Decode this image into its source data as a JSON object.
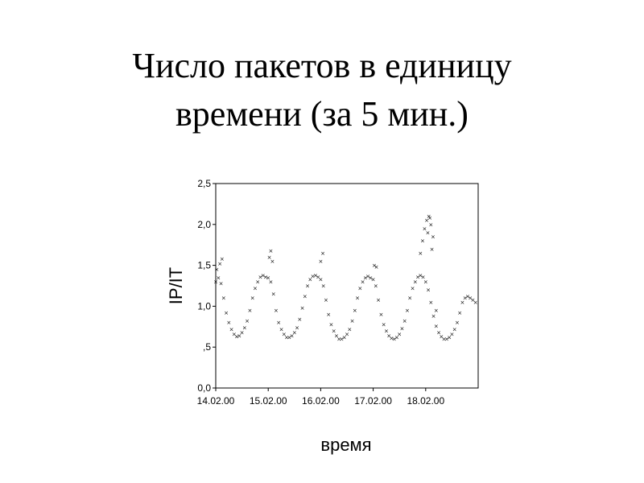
{
  "slide": {
    "title_line1": "Число пакетов в единицу",
    "title_line2": "времени (за 5 мин.)"
  },
  "chart_data": {
    "type": "scatter",
    "title": "",
    "xlabel": "время",
    "ylabel": "IP/IT",
    "marker": "x",
    "ylim": [
      0,
      2.5
    ],
    "xlim": [
      0,
      5
    ],
    "y_ticks": [
      0,
      0.5,
      1.0,
      1.5,
      2.0,
      2.5
    ],
    "y_tick_labels": [
      "0,0",
      ",5",
      "1,0",
      "1,5",
      "2,0",
      "2,5"
    ],
    "x_ticks": [
      0,
      1,
      2,
      3,
      4
    ],
    "x_tick_labels": [
      "14.02.00",
      "15.02.00",
      "16.02.00",
      "17.02.00",
      "18.02.00"
    ],
    "series": [
      {
        "x": [
          0.0,
          0.05,
          0.1,
          0.15,
          0.2,
          0.25,
          0.3,
          0.35,
          0.4,
          0.45,
          0.5,
          0.55,
          0.6,
          0.65,
          0.7,
          0.75,
          0.8,
          0.85,
          0.9,
          0.95,
          1.0,
          1.05,
          1.1,
          1.15,
          1.2,
          1.25,
          1.3,
          1.35,
          1.4,
          1.45,
          1.5,
          1.55,
          1.6,
          1.65,
          1.7,
          1.75,
          1.8,
          1.85,
          1.9,
          1.95,
          2.0,
          2.05,
          2.1,
          2.15,
          2.2,
          2.25,
          2.3,
          2.35,
          2.4,
          2.45,
          2.5,
          2.55,
          2.6,
          2.65,
          2.7,
          2.75,
          2.8,
          2.85,
          2.9,
          2.95,
          3.0,
          3.05,
          3.1,
          3.15,
          3.2,
          3.25,
          3.3,
          3.35,
          3.4,
          3.45,
          3.5,
          3.55,
          3.6,
          3.65,
          3.7,
          3.75,
          3.8,
          3.85,
          3.9,
          3.95,
          4.0,
          4.05,
          4.1,
          4.15,
          4.2,
          4.25,
          4.3,
          4.35,
          4.4,
          4.45,
          4.5,
          4.55,
          4.6,
          4.65,
          4.7,
          4.75,
          4.8,
          4.85,
          4.9,
          4.95,
          0.02,
          0.08,
          0.12,
          1.02,
          1.05,
          1.08,
          2.0,
          2.04,
          3.02,
          3.06,
          3.9,
          3.94,
          3.98,
          4.02,
          4.06,
          4.1,
          4.14,
          4.08,
          4.04,
          4.12,
          4.2
        ],
        "y": [
          1.3,
          1.35,
          1.28,
          1.1,
          0.92,
          0.8,
          0.72,
          0.66,
          0.63,
          0.64,
          0.68,
          0.74,
          0.82,
          0.95,
          1.1,
          1.22,
          1.3,
          1.36,
          1.38,
          1.36,
          1.35,
          1.3,
          1.15,
          0.95,
          0.8,
          0.72,
          0.66,
          0.62,
          0.62,
          0.64,
          0.68,
          0.74,
          0.84,
          0.98,
          1.12,
          1.25,
          1.33,
          1.37,
          1.38,
          1.36,
          1.33,
          1.25,
          1.08,
          0.9,
          0.78,
          0.7,
          0.64,
          0.6,
          0.6,
          0.62,
          0.66,
          0.72,
          0.82,
          0.95,
          1.1,
          1.22,
          1.3,
          1.35,
          1.37,
          1.35,
          1.33,
          1.25,
          1.08,
          0.9,
          0.78,
          0.7,
          0.64,
          0.61,
          0.6,
          0.62,
          0.66,
          0.73,
          0.82,
          0.95,
          1.1,
          1.22,
          1.3,
          1.36,
          1.38,
          1.36,
          1.3,
          1.2,
          1.05,
          0.88,
          0.76,
          0.68,
          0.63,
          0.6,
          0.6,
          0.62,
          0.66,
          0.72,
          0.8,
          0.92,
          1.05,
          1.1,
          1.12,
          1.1,
          1.08,
          1.05,
          1.45,
          1.52,
          1.58,
          1.6,
          1.68,
          1.55,
          1.55,
          1.65,
          1.5,
          1.48,
          1.65,
          1.8,
          1.95,
          2.05,
          2.1,
          2.0,
          1.85,
          2.08,
          1.9,
          1.7,
          0.95
        ]
      }
    ]
  }
}
